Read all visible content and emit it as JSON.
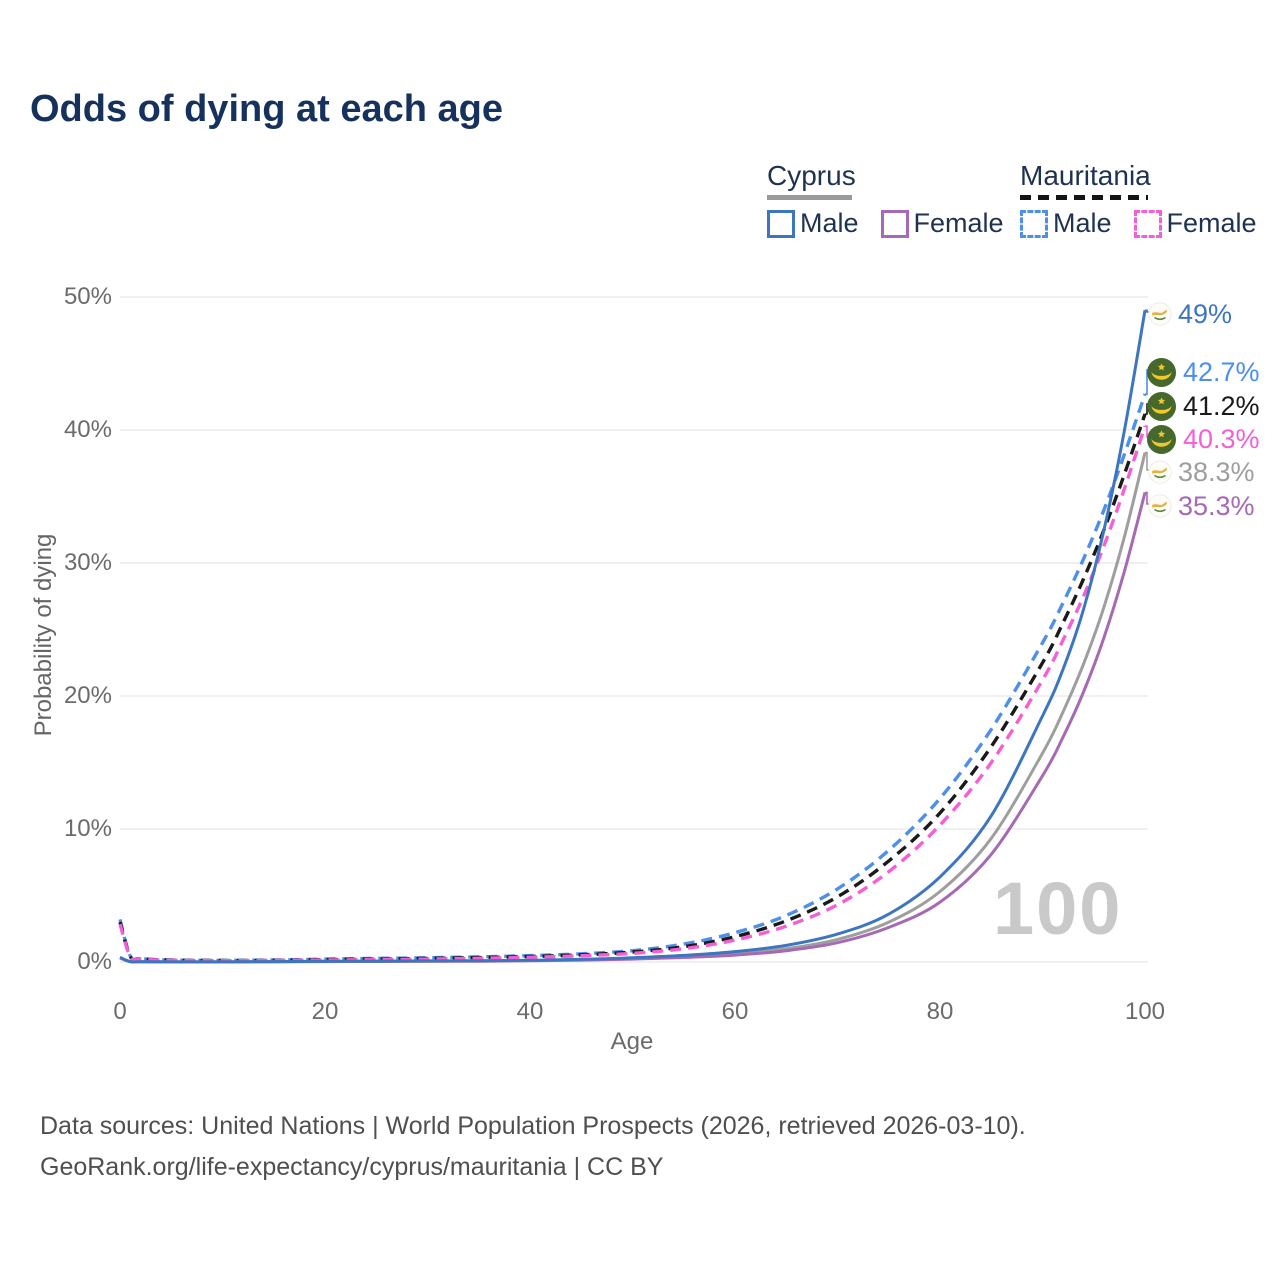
{
  "title": "Odds of dying at each age",
  "legend": {
    "groups": [
      {
        "label": "Cyprus",
        "line_style": "solid",
        "underline_color": "#9a9a9a",
        "items": [
          {
            "label": "Male",
            "color": "#3d76bf"
          },
          {
            "label": "Female",
            "color": "#a669b4"
          }
        ]
      },
      {
        "label": "Mauritania",
        "line_style": "dashed",
        "underline_color": "#141414",
        "items": [
          {
            "label": "Male",
            "color": "#4e8fe8"
          },
          {
            "label": "Female",
            "color": "#f45fd6"
          }
        ]
      }
    ]
  },
  "watermark": "100",
  "footer": {
    "line1": "Data sources: United Nations | World Population Prospects (2026, retrieved 2026-03-10).",
    "line2": "GeoRank.org/life-expectancy/cyprus/mauritania | CC BY"
  },
  "chart_data": {
    "type": "line",
    "title": "Odds of dying at each age",
    "xlabel": "Age",
    "ylabel": "Probability of dying",
    "xlim": [
      0,
      100
    ],
    "ylim_percent": [
      0,
      50
    ],
    "grid": true,
    "x_ticks": [
      0,
      20,
      40,
      60,
      80,
      100
    ],
    "x_tick_labels": [
      "0",
      "20",
      "40",
      "60",
      "80",
      "100"
    ],
    "y_ticks_pct": [
      0,
      10,
      20,
      30,
      40,
      50
    ],
    "y_tick_labels": [
      "0%",
      "10%",
      "20%",
      "30%",
      "40%",
      "50%"
    ],
    "ages": [
      0,
      1,
      2,
      5,
      10,
      15,
      20,
      25,
      30,
      35,
      40,
      45,
      50,
      55,
      60,
      65,
      70,
      75,
      80,
      85,
      90,
      92,
      94,
      96,
      98,
      100
    ],
    "series": [
      {
        "name": "Cyprus Male",
        "country": "Cyprus",
        "sex": "Male",
        "color": "#3d76bf",
        "dash": false,
        "end_label": "49%",
        "end_value": 49.0,
        "values": [
          0.35,
          0.03,
          0.02,
          0.01,
          0.01,
          0.03,
          0.06,
          0.07,
          0.08,
          0.1,
          0.13,
          0.2,
          0.32,
          0.5,
          0.78,
          1.25,
          2.1,
          3.6,
          6.4,
          11.0,
          18.5,
          22.0,
          26.5,
          32.5,
          40.0,
          49.0
        ]
      },
      {
        "name": "Mauritania Male",
        "country": "Mauritania",
        "sex": "Male",
        "color": "#4e8fe8",
        "dash": true,
        "end_label": "42.7%",
        "end_value": 42.7,
        "values": [
          3.2,
          0.45,
          0.25,
          0.15,
          0.12,
          0.15,
          0.22,
          0.27,
          0.32,
          0.39,
          0.48,
          0.62,
          0.85,
          1.35,
          2.2,
          3.5,
          5.5,
          8.4,
          12.3,
          17.5,
          24.0,
          27.0,
          30.3,
          34.0,
          38.2,
          42.7
        ]
      },
      {
        "name": "Mauritania Total",
        "country": "Mauritania",
        "sex": "Both",
        "color": "#1a1a1a",
        "dash": true,
        "end_label": "41.2%",
        "end_value": 41.2,
        "values": [
          3.0,
          0.42,
          0.23,
          0.14,
          0.11,
          0.13,
          0.18,
          0.22,
          0.27,
          0.33,
          0.41,
          0.54,
          0.75,
          1.15,
          1.9,
          3.1,
          4.9,
          7.6,
          11.2,
          16.2,
          22.5,
          25.5,
          28.8,
          32.5,
          36.7,
          41.2
        ]
      },
      {
        "name": "Mauritania Female",
        "country": "Mauritania",
        "sex": "Female",
        "color": "#f45fd6",
        "dash": true,
        "end_label": "40.3%",
        "end_value": 40.3,
        "values": [
          2.85,
          0.4,
          0.22,
          0.13,
          0.1,
          0.12,
          0.15,
          0.18,
          0.22,
          0.28,
          0.35,
          0.47,
          0.65,
          1.0,
          1.65,
          2.7,
          4.3,
          6.8,
          10.3,
          15.0,
          21.2,
          24.2,
          27.5,
          31.3,
          35.6,
          40.3
        ]
      },
      {
        "name": "Cyprus Total",
        "country": "Cyprus",
        "sex": "Both",
        "color": "#9e9e9e",
        "dash": false,
        "end_label": "38.3%",
        "end_value": 38.3,
        "values": [
          0.33,
          0.03,
          0.02,
          0.01,
          0.01,
          0.02,
          0.05,
          0.05,
          0.06,
          0.08,
          0.11,
          0.17,
          0.26,
          0.41,
          0.63,
          1.0,
          1.7,
          3.0,
          5.3,
          9.3,
          15.7,
          18.8,
          22.4,
          26.7,
          32.0,
          38.3
        ]
      },
      {
        "name": "Cyprus Female",
        "country": "Cyprus",
        "sex": "Female",
        "color": "#a669b4",
        "dash": false,
        "end_label": "35.3%",
        "end_value": 35.3,
        "values": [
          0.3,
          0.02,
          0.02,
          0.01,
          0.01,
          0.02,
          0.03,
          0.04,
          0.05,
          0.06,
          0.09,
          0.14,
          0.22,
          0.34,
          0.52,
          0.85,
          1.45,
          2.6,
          4.5,
          8.1,
          14.0,
          16.9,
          20.3,
          24.4,
          29.4,
          35.3
        ]
      }
    ]
  }
}
